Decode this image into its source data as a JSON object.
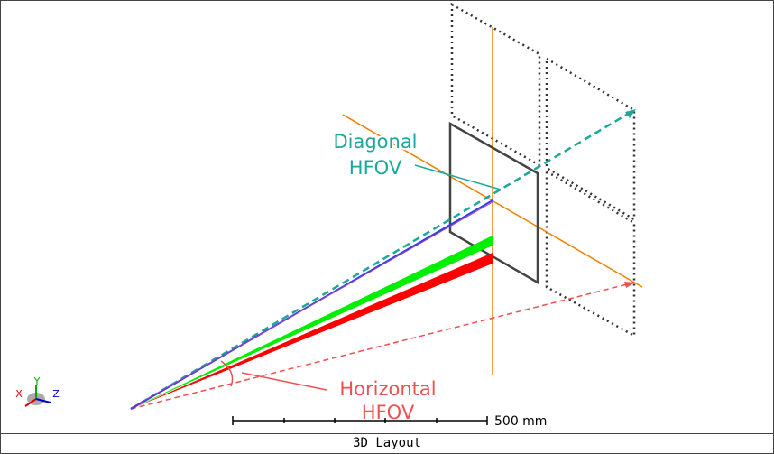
{
  "labels": {
    "diagonal": [
      "Diagonal",
      "HFOV"
    ],
    "horizontal": [
      "Horizontal",
      "HFOV"
    ]
  },
  "scale_bar": "500 mm",
  "footer": "3D Layout",
  "axes": [
    "X",
    "Y",
    "Z"
  ]
}
